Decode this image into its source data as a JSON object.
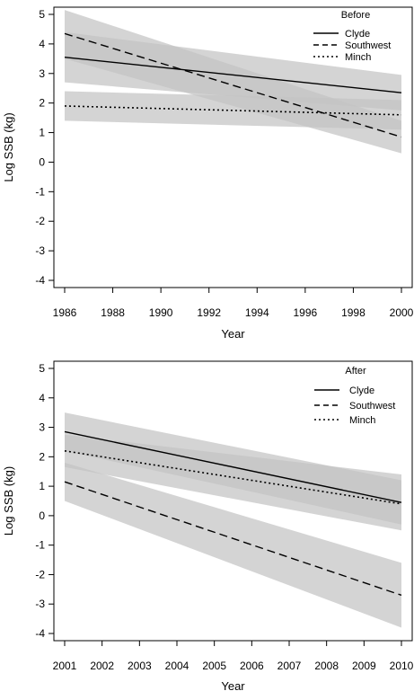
{
  "chart_data": [
    {
      "type": "line",
      "xlabel": "Year",
      "ylabel": "Log SSB (kg)",
      "xlim": [
        1986,
        2000
      ],
      "ylim": [
        -4,
        5
      ],
      "xticks": [
        1986,
        1988,
        1990,
        1992,
        1994,
        1996,
        1998,
        2000
      ],
      "xtick_labels": [
        "1986",
        "1988",
        "1990",
        "1992",
        "1994",
        "1996",
        "1998",
        "2000"
      ],
      "yticks": [
        -4,
        -3,
        -2,
        -1,
        0,
        1,
        2,
        3,
        4,
        5
      ],
      "ytick_labels": [
        "-4",
        "-3",
        "-2",
        "-1",
        "0",
        "1",
        "2",
        "3",
        "4",
        "5"
      ],
      "legend": {
        "title": "Before",
        "position": "top-right"
      },
      "series": [
        {
          "name": "Clyde",
          "style": "solid",
          "x": [
            1986,
            2000
          ],
          "y": [
            3.55,
            2.35
          ],
          "ci_lower": [
            2.7,
            1.75
          ],
          "ci_upper": [
            4.4,
            2.95
          ]
        },
        {
          "name": "Southwest",
          "style": "dashed",
          "x": [
            1986,
            2000
          ],
          "y": [
            4.35,
            0.85
          ],
          "ci_lower": [
            3.5,
            0.3
          ],
          "ci_upper": [
            5.15,
            1.4
          ]
        },
        {
          "name": "Minch",
          "style": "dotted",
          "x": [
            1986,
            2000
          ],
          "y": [
            1.9,
            1.6
          ],
          "ci_lower": [
            1.4,
            1.1
          ],
          "ci_upper": [
            2.4,
            2.1
          ]
        }
      ],
      "band_color": "#c4c4c4",
      "grid": false
    },
    {
      "type": "line",
      "xlabel": "Year",
      "ylabel": "Log SSB (kg)",
      "xlim": [
        2001,
        2010
      ],
      "ylim": [
        -4,
        5
      ],
      "xticks": [
        2001,
        2002,
        2003,
        2004,
        2005,
        2006,
        2007,
        2008,
        2009,
        2010
      ],
      "xtick_labels": [
        "2001",
        "2002",
        "2003",
        "2004",
        "2005",
        "2006",
        "2007",
        "2008",
        "2009",
        "2010"
      ],
      "yticks": [
        -4,
        -3,
        -2,
        -1,
        0,
        1,
        2,
        3,
        4,
        5
      ],
      "ytick_labels": [
        "-4",
        "-3",
        "-2",
        "-1",
        "0",
        "1",
        "2",
        "3",
        "4",
        "5"
      ],
      "legend": {
        "title": "After",
        "position": "top-right"
      },
      "series": [
        {
          "name": "Clyde",
          "style": "solid",
          "x": [
            2001,
            2010
          ],
          "y": [
            2.85,
            0.45
          ],
          "ci_lower": [
            2.2,
            -0.3
          ],
          "ci_upper": [
            3.5,
            1.2
          ]
        },
        {
          "name": "Southwest",
          "style": "dashed",
          "x": [
            2001,
            2010
          ],
          "y": [
            1.15,
            -2.7
          ],
          "ci_lower": [
            0.5,
            -3.8
          ],
          "ci_upper": [
            1.8,
            -1.6
          ]
        },
        {
          "name": "Minch",
          "style": "dotted",
          "x": [
            2001,
            2010
          ],
          "y": [
            2.2,
            0.4
          ],
          "ci_lower": [
            1.65,
            -0.5
          ],
          "ci_upper": [
            2.75,
            1.4
          ]
        }
      ],
      "band_color": "#c4c4c4",
      "grid": false
    }
  ]
}
